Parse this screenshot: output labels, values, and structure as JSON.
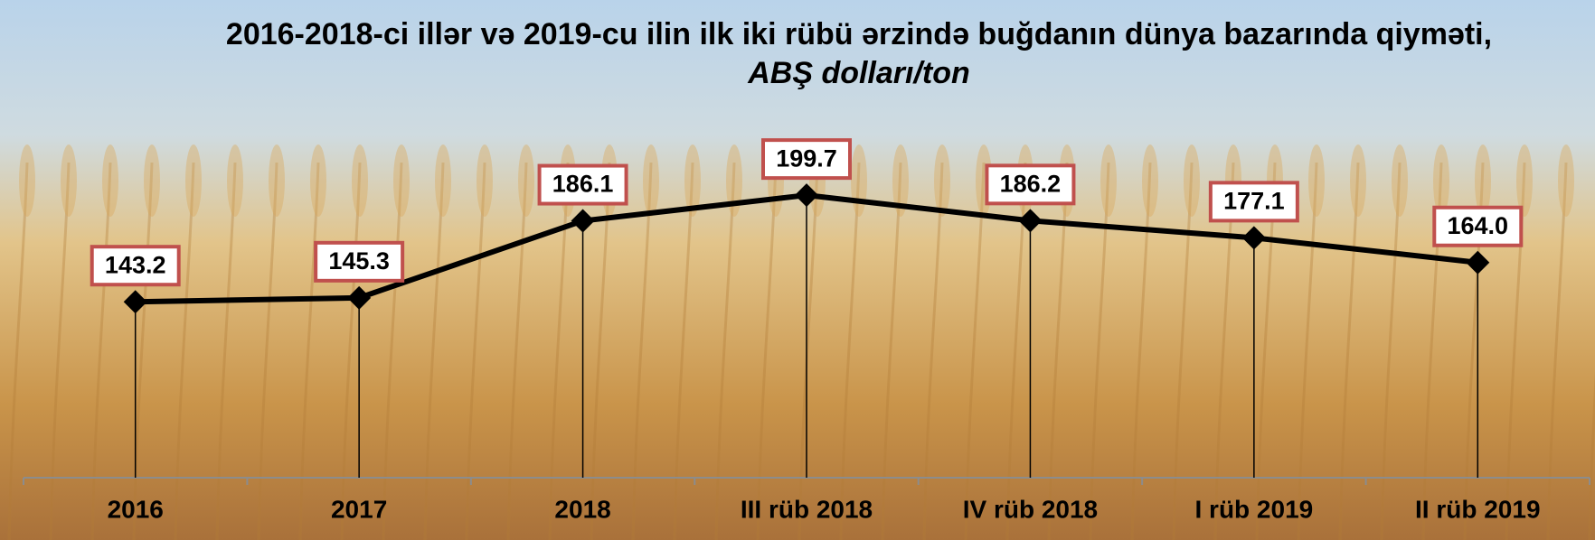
{
  "chart_data": {
    "type": "line",
    "title": "2016-2018-ci illər və 2019-cu ilin ilk iki rübü ərzində buğdanın dünya bazarında qiyməti,",
    "title_unit": "ABŞ dolları/ton",
    "categories": [
      "2016",
      "2017",
      "2018",
      "III rüb 2018",
      "IV rüb 2018",
      "I rüb 2019",
      "II rüb 2019"
    ],
    "values": [
      143.2,
      145.3,
      186.1,
      199.7,
      186.2,
      177.1,
      164.0
    ],
    "value_labels": [
      "143.2",
      "145.3",
      "186.1",
      "199.7",
      "186.2",
      "177.1",
      "164.0"
    ],
    "color": "#000000",
    "label_border_color": "#c0504d",
    "ylim": [
      50,
      250
    ]
  }
}
